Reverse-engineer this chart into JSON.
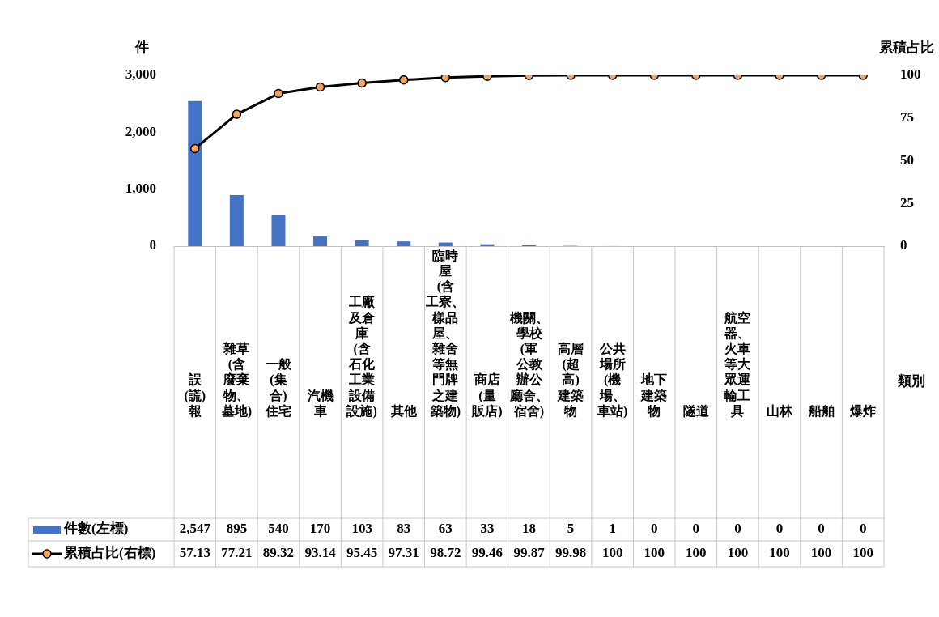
{
  "chart_data": {
    "type": "bar",
    "xlabel": "類別",
    "ylabel": "件",
    "y2label": "累積占比",
    "categories": [
      "誤(謊)報",
      "雜草(含廢棄物、墓地)",
      "一般(集合)住宅",
      "汽機車",
      "工廠及倉庫(含石化工業設備設施)",
      "其他",
      "臨時屋(含工寮、樣品屋、雜舍等無門牌之建築物)",
      "商店(量販店)",
      "機關、學校(軍公教辦公廳舍、宿舍)",
      "高層(超高)建築物",
      "公共場所(機場、車站)",
      "地下建築物",
      "隧道",
      "航空器、火車等大眾運輸工具",
      "山林",
      "船舶",
      "爆炸"
    ],
    "series": [
      {
        "name": "件數(左標)",
        "color": "#4472c4",
        "values": [
          2547,
          895,
          540,
          170,
          103,
          83,
          63,
          33,
          18,
          5,
          1,
          0,
          0,
          0,
          0,
          0,
          0
        ],
        "value_labels": [
          "2,547",
          "895",
          "540",
          "170",
          "103",
          "83",
          "63",
          "33",
          "18",
          "5",
          "1",
          "0",
          "0",
          "0",
          "0",
          "0",
          "0"
        ]
      },
      {
        "name": "累積占比(右標)",
        "type": "line",
        "axis": "y2",
        "color": "#000000",
        "values": [
          57.13,
          77.21,
          89.32,
          93.14,
          95.45,
          97.31,
          98.72,
          99.46,
          99.87,
          99.98,
          100,
          100,
          100,
          100,
          100,
          100,
          100
        ],
        "value_labels": [
          "57.13",
          "77.21",
          "89.32",
          "93.14",
          "95.45",
          "97.31",
          "98.72",
          "99.46",
          "99.87",
          "99.98",
          "100",
          "100",
          "100",
          "100",
          "100",
          "100",
          "100"
        ]
      }
    ],
    "ylim": [
      0,
      3000
    ],
    "yticks": [
      0,
      {
        "value": 1000,
        "label": "1,000"
      },
      {
        "value": 2000,
        "label": "2,000"
      },
      {
        "value": 3000,
        "label": "3,000"
      }
    ],
    "y2lim": [
      0,
      100
    ],
    "y2ticks": [
      0,
      25,
      50,
      75,
      100
    ],
    "marker": "circle",
    "grid": false,
    "legend": "bottom"
  }
}
